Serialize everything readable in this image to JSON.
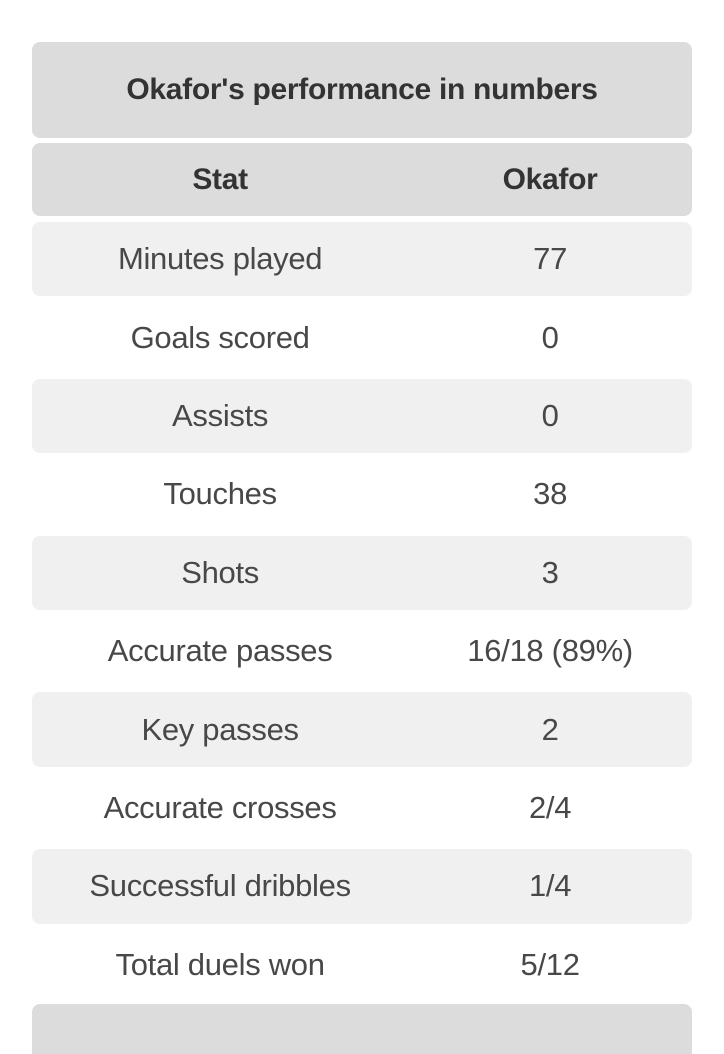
{
  "table": {
    "title": "Okafor's performance in numbers",
    "columns": {
      "stat": "Stat",
      "player": "Okafor"
    },
    "rows": [
      {
        "stat": "Minutes played",
        "value": "77"
      },
      {
        "stat": "Goals scored",
        "value": "0"
      },
      {
        "stat": "Assists",
        "value": "0"
      },
      {
        "stat": "Touches",
        "value": "38"
      },
      {
        "stat": "Shots",
        "value": "3"
      },
      {
        "stat": "Accurate passes",
        "value": "16/18 (89%)"
      },
      {
        "stat": "Key passes",
        "value": "2"
      },
      {
        "stat": "Accurate crosses",
        "value": "2/4"
      },
      {
        "stat": "Successful dribbles",
        "value": "1/4"
      },
      {
        "stat": "Total duels won",
        "value": "5/12"
      }
    ],
    "colors": {
      "header_bg": "#dcdcdc",
      "alt_row_bg": "#f0f0f0",
      "title_text": "#333333",
      "row_text": "#484848",
      "page_bg": "#ffffff"
    }
  }
}
